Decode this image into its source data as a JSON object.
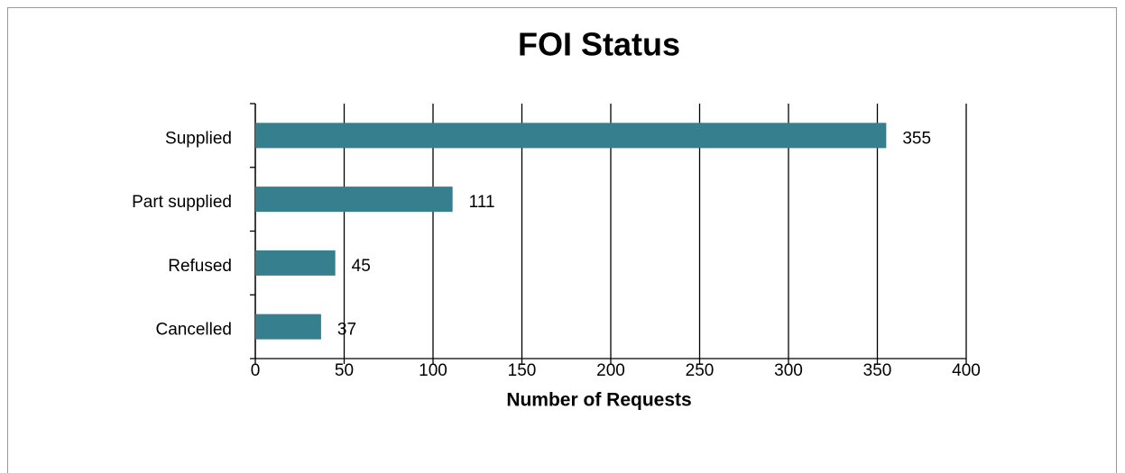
{
  "chart_data": {
    "type": "bar",
    "orientation": "horizontal",
    "title": "FOI Status",
    "x_label": "Number of Requests",
    "categories": [
      "Supplied",
      "Part supplied",
      "Refused",
      "Cancelled"
    ],
    "values": [
      355,
      111,
      45,
      37
    ],
    "color": "#367f8f",
    "xlim": [
      0,
      400
    ],
    "xticks": [
      0,
      50,
      100,
      150,
      200,
      250,
      300,
      350,
      400
    ],
    "grid": true
  }
}
